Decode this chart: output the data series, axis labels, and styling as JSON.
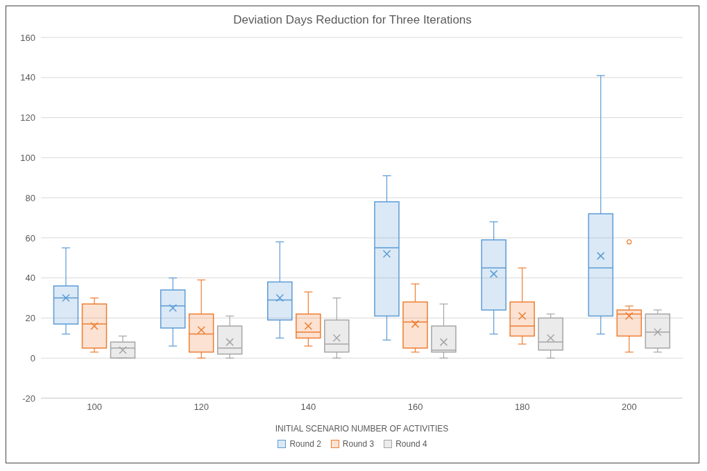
{
  "chart_data": {
    "type": "box",
    "title": "Deviation Days Reduction for Three Iterations",
    "xlabel": "INITIAL SCENARIO NUMBER OF ACTIVITIES",
    "categories": [
      "100",
      "120",
      "140",
      "160",
      "180",
      "200"
    ],
    "ylim": [
      -20,
      160
    ],
    "yticks": [
      -20,
      0,
      20,
      40,
      60,
      80,
      100,
      120,
      140,
      160
    ],
    "grid": "y",
    "legend": "bottom",
    "series": [
      {
        "name": "Round 2",
        "color": "#5b9bd5",
        "boxes": [
          {
            "low": 12,
            "q1": 17,
            "median": 30,
            "q3": 36,
            "high": 55,
            "mean": 30
          },
          {
            "low": 6,
            "q1": 15,
            "median": 26,
            "q3": 34,
            "high": 40,
            "mean": 25
          },
          {
            "low": 10,
            "q1": 19,
            "median": 29,
            "q3": 38,
            "high": 58,
            "mean": 30
          },
          {
            "low": 9,
            "q1": 21,
            "median": 55,
            "q3": 78,
            "high": 91,
            "mean": 52
          },
          {
            "low": 12,
            "q1": 24,
            "median": 45,
            "q3": 59,
            "high": 68,
            "mean": 42
          },
          {
            "low": 12,
            "q1": 21,
            "median": 45,
            "q3": 72,
            "high": 141,
            "mean": 51
          }
        ]
      },
      {
        "name": "Round 3",
        "color": "#ed7d31",
        "boxes": [
          {
            "low": 3,
            "q1": 5,
            "median": 17,
            "q3": 27,
            "high": 30,
            "mean": 16
          },
          {
            "low": 0,
            "q1": 3,
            "median": 12,
            "q3": 22,
            "high": 39,
            "mean": 14
          },
          {
            "low": 6,
            "q1": 10,
            "median": 13,
            "q3": 22,
            "high": 33,
            "mean": 16
          },
          {
            "low": 3,
            "q1": 5,
            "median": 18,
            "q3": 28,
            "high": 37,
            "mean": 17
          },
          {
            "low": 7,
            "q1": 11,
            "median": 16,
            "q3": 28,
            "high": 45,
            "mean": 21
          },
          {
            "low": 3,
            "q1": 11,
            "median": 22,
            "q3": 24,
            "high": 26,
            "mean": 21,
            "outliers": [
              58
            ]
          }
        ]
      },
      {
        "name": "Round 4",
        "color": "#a5a5a5",
        "boxes": [
          {
            "low": 0,
            "q1": 0,
            "median": 5,
            "q3": 8,
            "high": 11,
            "mean": 4
          },
          {
            "low": 0,
            "q1": 2,
            "median": 5,
            "q3": 16,
            "high": 21,
            "mean": 8
          },
          {
            "low": 0,
            "q1": 3,
            "median": 7,
            "q3": 19,
            "high": 30,
            "mean": 10
          },
          {
            "low": 0,
            "q1": 3,
            "median": 4,
            "q3": 16,
            "high": 27,
            "mean": 8
          },
          {
            "low": 0,
            "q1": 4,
            "median": 8,
            "q3": 20,
            "high": 22,
            "mean": 10
          },
          {
            "low": 3,
            "q1": 5,
            "median": 13,
            "q3": 22,
            "high": 24,
            "mean": 13
          }
        ]
      }
    ]
  }
}
